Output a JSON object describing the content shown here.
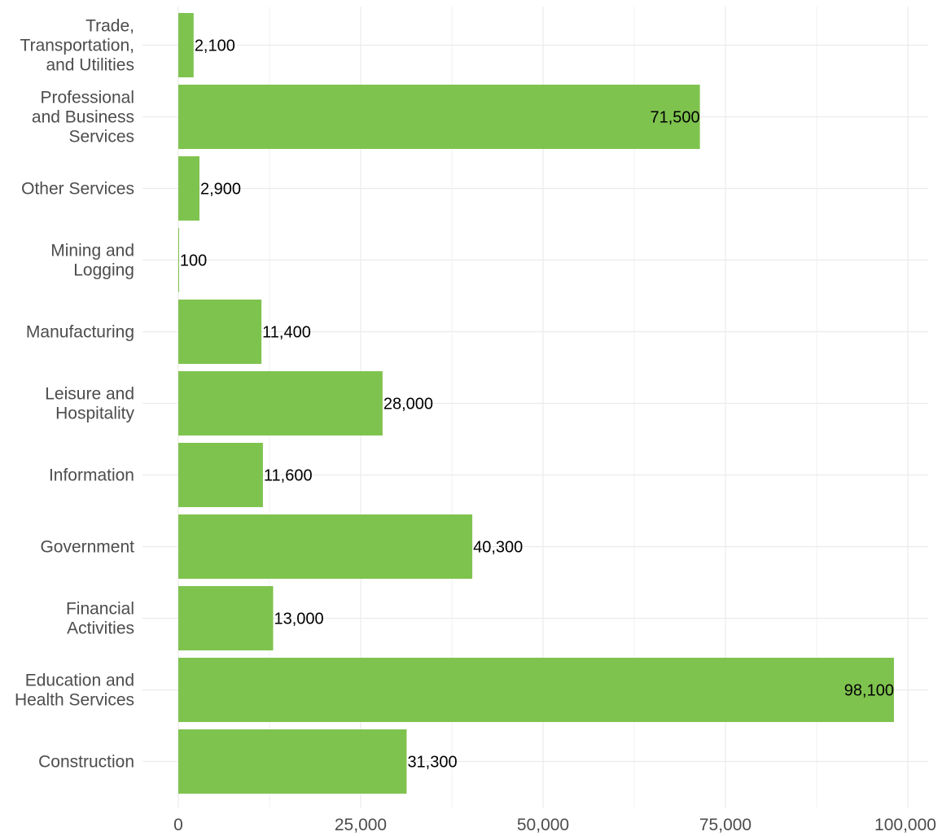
{
  "chart_data": {
    "type": "bar",
    "orientation": "horizontal",
    "categories": [
      "Trade, Transportation, and Utilities",
      "Professional and Business Services",
      "Other Services",
      "Mining and Logging",
      "Manufacturing",
      "Leisure and Hospitality",
      "Information",
      "Government",
      "Financial Activities",
      "Education and Health Services",
      "Construction"
    ],
    "category_lines": [
      [
        "Trade,",
        "Transportation,",
        "and Utilities"
      ],
      [
        "Professional",
        "and Business",
        "Services"
      ],
      [
        "Other Services"
      ],
      [
        "Mining and",
        "Logging"
      ],
      [
        "Manufacturing"
      ],
      [
        "Leisure and",
        "Hospitality"
      ],
      [
        "Information"
      ],
      [
        "Government"
      ],
      [
        "Financial",
        "Activities"
      ],
      [
        "Education and",
        "Health Services"
      ],
      [
        "Construction"
      ]
    ],
    "values": [
      2100,
      71500,
      2900,
      100,
      11400,
      28000,
      11600,
      40300,
      13000,
      98100,
      31300
    ],
    "value_labels": [
      "2,100",
      "71,500",
      "2,900",
      "100",
      "11,400",
      "28,000",
      "11,600",
      "40,300",
      "13,000",
      "98,100",
      "31,300"
    ],
    "x_ticks": [
      0,
      25000,
      50000,
      75000,
      100000
    ],
    "x_tick_labels": [
      "0",
      "25,000",
      "50,000",
      "75,000",
      "100,000"
    ],
    "xlim": [
      0,
      100000
    ],
    "title": "",
    "xlabel": "",
    "ylabel": "",
    "grid": true,
    "legend": "none",
    "bar_color": "#7fc34f",
    "grid_color": "#ebebeb"
  }
}
